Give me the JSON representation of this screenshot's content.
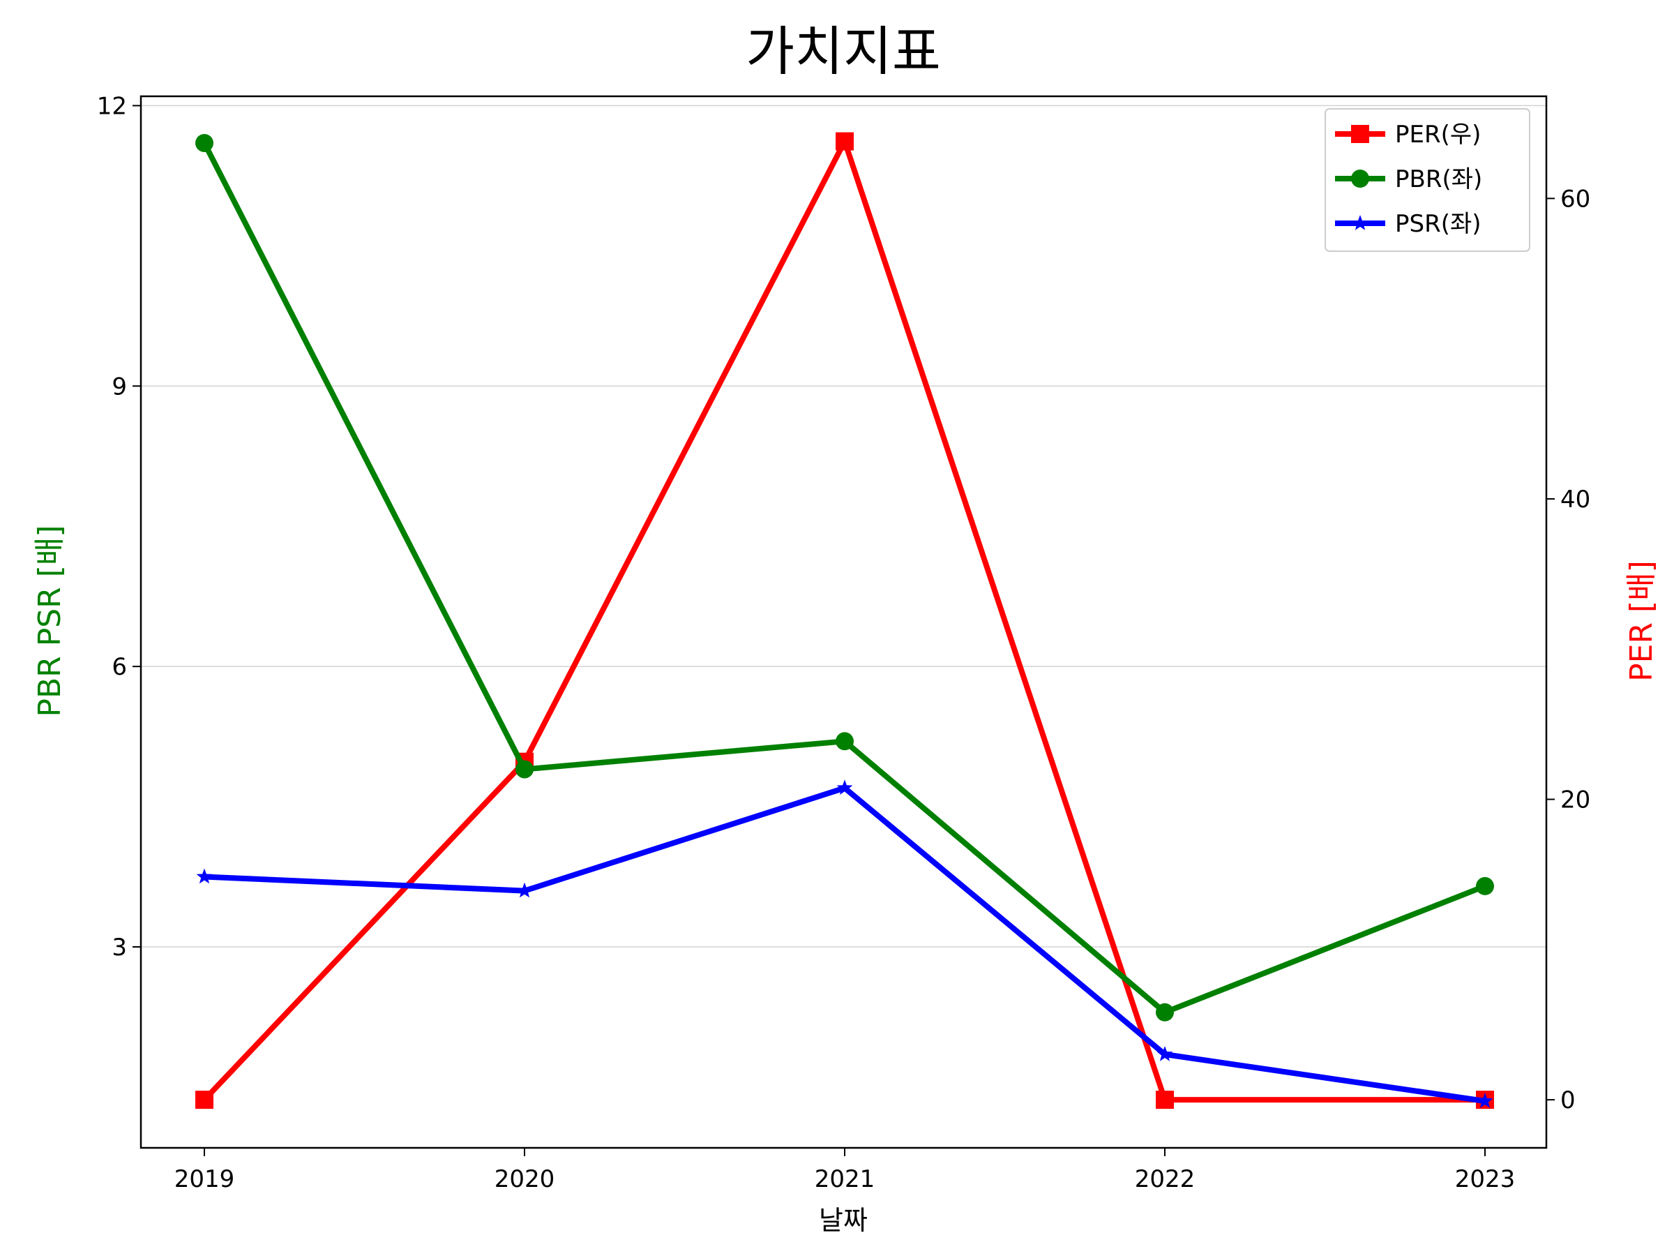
{
  "chart_data": {
    "type": "line",
    "title": "가치지표",
    "xlabel": "날짜",
    "ylabel_left": "PBR PSR [배]",
    "ylabel_right": "PER [배]",
    "ylabel_left_color": "#008000",
    "ylabel_right_color": "#ff0000",
    "x": [
      "2019",
      "2020",
      "2021",
      "2022",
      "2023"
    ],
    "ylim_left": [
      0.85,
      12.1
    ],
    "ylim_right": [
      -3.2,
      66.8
    ],
    "yticks_left": [
      "3",
      "6",
      "9",
      "12"
    ],
    "yticks_right": [
      "0",
      "20",
      "40",
      "60"
    ],
    "grid": "horizontal",
    "legend_position": "top-right",
    "series": [
      {
        "name": "PER(우)",
        "axis": "right",
        "color": "#ff0000",
        "marker": "square",
        "values": [
          0,
          22.5,
          63.8,
          0,
          0
        ]
      },
      {
        "name": "PBR(좌)",
        "axis": "left",
        "color": "#008000",
        "marker": "circle",
        "values": [
          11.6,
          4.9,
          5.2,
          2.3,
          3.65
        ]
      },
      {
        "name": "PSR(좌)",
        "axis": "left",
        "color": "#0000ff",
        "marker": "star",
        "values": [
          3.75,
          3.6,
          4.7,
          1.85,
          1.35
        ]
      }
    ]
  }
}
